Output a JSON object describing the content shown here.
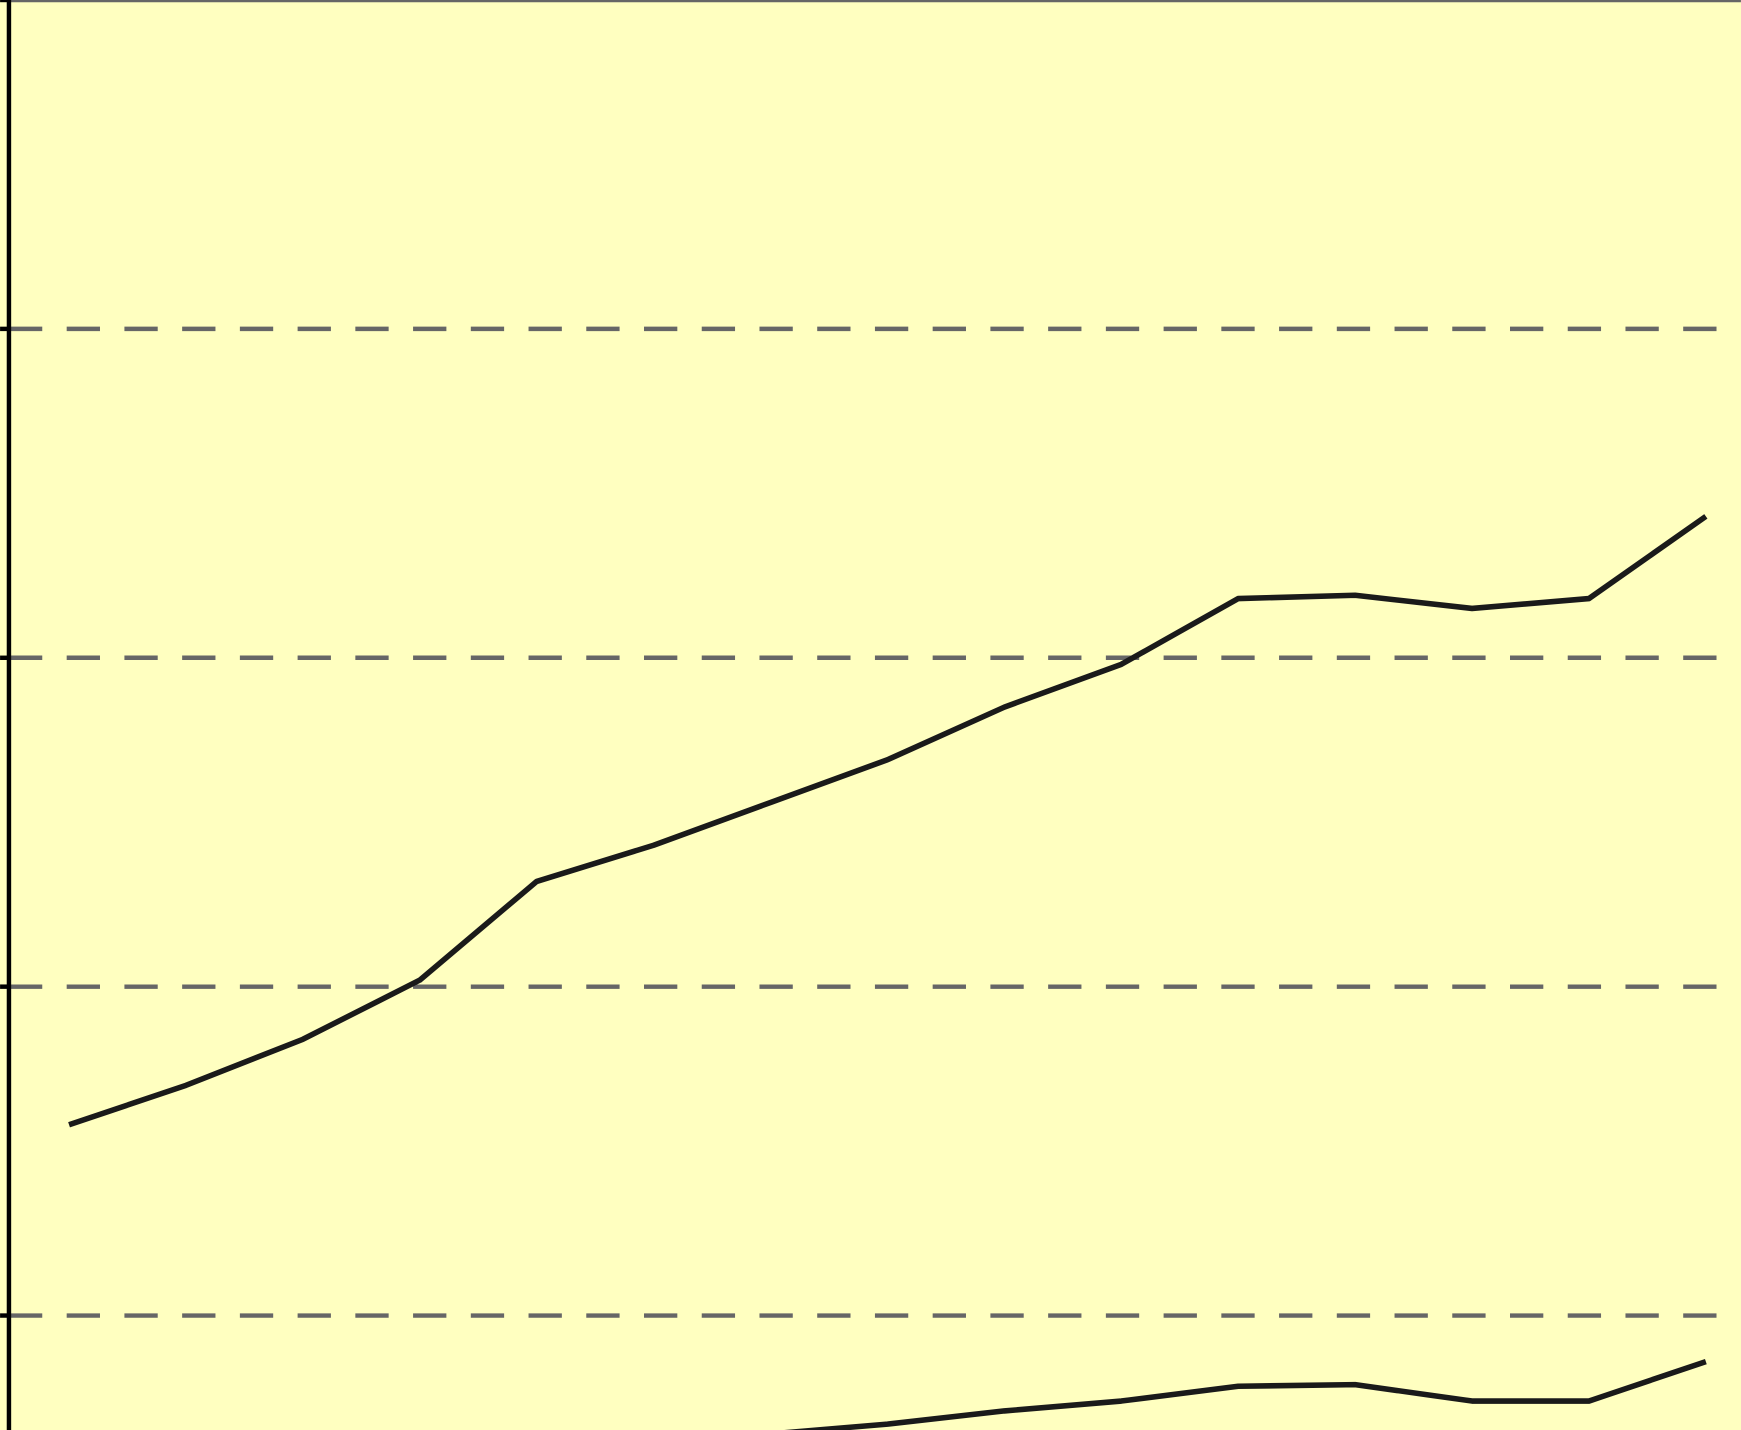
{
  "chart_data": {
    "type": "line",
    "x": [
      0,
      1,
      2,
      3,
      4,
      5,
      6,
      7,
      8,
      9,
      10,
      11,
      12,
      13,
      14
    ],
    "series": [
      {
        "color": "#1a1a1a",
        "values": [
          0.58,
          0.7,
          0.84,
          1.02,
          1.32,
          1.43,
          1.56,
          1.69,
          1.85,
          1.98,
          2.18,
          2.19,
          2.15,
          2.18,
          2.43
        ]
      },
      {
        "color": "#1a1a1a",
        "values": [
          null,
          null,
          null,
          null,
          null,
          null,
          -0.36,
          -0.33,
          -0.29,
          -0.26,
          -0.215,
          -0.21,
          -0.26,
          -0.26,
          -0.14
        ]
      }
    ],
    "xlim": [
      -0.59,
      14.3
    ],
    "ylim": [
      -0.348,
      4
    ],
    "yticks": [
      0,
      1,
      2,
      3,
      4
    ],
    "grid": true,
    "background": "#ffffc0"
  }
}
